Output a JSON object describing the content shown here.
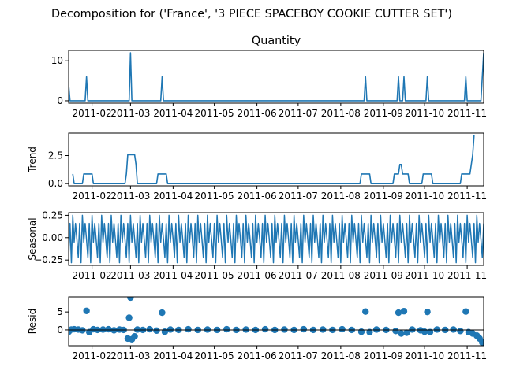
{
  "chart_data": {
    "type": "line",
    "title": "Decomposition for ('France', '3 PIECE SPACEBOY COOKIE CUTTER SET')",
    "x_start": "2011-01-15",
    "x_end": "2011-11-13",
    "x_tick_labels": [
      "2011-02",
      "2011-03",
      "2011-04",
      "2011-05",
      "2011-06",
      "2011-07",
      "2011-08",
      "2011-09",
      "2011-10",
      "2011-11"
    ],
    "x_tick_dates": [
      "2011-02-01",
      "2011-03-01",
      "2011-04-01",
      "2011-05-01",
      "2011-06-01",
      "2011-07-01",
      "2011-08-01",
      "2011-09-01",
      "2011-10-01",
      "2011-11-01"
    ],
    "line_color": "#1f77b4",
    "panels": [
      {
        "name": "observed",
        "title": "Quantity",
        "ylabel": "",
        "style": "line",
        "ylim": [
          -0.6,
          12.6
        ],
        "y_ticks": [
          0,
          10
        ],
        "points": [
          [
            "2011-01-15",
            4
          ],
          [
            "2011-01-16",
            0
          ],
          [
            "2011-01-27",
            0
          ],
          [
            "2011-01-28",
            6
          ],
          [
            "2011-01-29",
            0
          ],
          [
            "2011-02-28",
            0
          ],
          [
            "2011-03-01",
            12
          ],
          [
            "2011-03-02",
            0
          ],
          [
            "2011-03-23",
            0
          ],
          [
            "2011-03-24",
            6
          ],
          [
            "2011-03-25",
            0
          ],
          [
            "2011-08-18",
            0
          ],
          [
            "2011-08-19",
            6
          ],
          [
            "2011-08-20",
            0
          ],
          [
            "2011-09-11",
            0
          ],
          [
            "2011-09-12",
            6
          ],
          [
            "2011-09-13",
            0
          ],
          [
            "2011-09-15",
            0
          ],
          [
            "2011-09-16",
            6
          ],
          [
            "2011-09-17",
            0
          ],
          [
            "2011-10-02",
            0
          ],
          [
            "2011-10-03",
            6
          ],
          [
            "2011-10-04",
            0
          ],
          [
            "2011-10-30",
            0
          ],
          [
            "2011-10-31",
            6
          ],
          [
            "2011-11-01",
            0
          ],
          [
            "2011-11-11",
            0
          ],
          [
            "2011-11-13",
            12
          ]
        ]
      },
      {
        "name": "trend",
        "title": "",
        "ylabel": "Trend",
        "style": "line",
        "ylim": [
          -0.2,
          4.5
        ],
        "y_ticks": [
          0.0,
          2.5
        ],
        "points": [
          [
            "2011-01-18",
            0.86
          ],
          [
            "2011-01-19",
            0.0
          ],
          [
            "2011-01-25",
            0.0
          ],
          [
            "2011-01-26",
            0.86
          ],
          [
            "2011-02-01",
            0.86
          ],
          [
            "2011-02-02",
            0.0
          ],
          [
            "2011-02-25",
            0.0
          ],
          [
            "2011-02-26",
            0.86
          ],
          [
            "2011-02-27",
            2.57
          ],
          [
            "2011-03-04",
            2.57
          ],
          [
            "2011-03-05",
            1.71
          ],
          [
            "2011-03-06",
            0.0
          ],
          [
            "2011-03-20",
            0.0
          ],
          [
            "2011-03-21",
            0.86
          ],
          [
            "2011-03-27",
            0.86
          ],
          [
            "2011-03-28",
            0.0
          ],
          [
            "2011-08-15",
            0.0
          ],
          [
            "2011-08-16",
            0.86
          ],
          [
            "2011-08-22",
            0.86
          ],
          [
            "2011-08-23",
            0.0
          ],
          [
            "2011-09-08",
            0.0
          ],
          [
            "2011-09-09",
            0.86
          ],
          [
            "2011-09-12",
            0.86
          ],
          [
            "2011-09-13",
            1.71
          ],
          [
            "2011-09-14",
            1.71
          ],
          [
            "2011-09-15",
            0.86
          ],
          [
            "2011-09-19",
            0.86
          ],
          [
            "2011-09-20",
            0.0
          ],
          [
            "2011-09-29",
            0.0
          ],
          [
            "2011-09-30",
            0.86
          ],
          [
            "2011-10-06",
            0.86
          ],
          [
            "2011-10-07",
            0.0
          ],
          [
            "2011-10-27",
            0.0
          ],
          [
            "2011-10-28",
            0.86
          ],
          [
            "2011-11-03",
            0.86
          ],
          [
            "2011-11-04",
            1.71
          ],
          [
            "2011-11-05",
            2.57
          ],
          [
            "2011-11-06",
            4.29
          ]
        ]
      },
      {
        "name": "seasonal",
        "title": "",
        "ylabel": "Seasonal",
        "style": "seasonal",
        "ylim": [
          -0.31,
          0.28
        ],
        "y_ticks": [
          -0.25,
          0.0,
          0.25
        ],
        "weekly_pattern": [
          -0.22,
          0.16,
          -0.28,
          0.25,
          -0.05,
          0.16,
          -0.02
        ]
      },
      {
        "name": "resid",
        "title": "",
        "ylabel": "Resid",
        "style": "scatter",
        "ylim": [
          -4.4,
          9.2
        ],
        "y_ticks": [
          0,
          5
        ],
        "baseline": 0,
        "points": [
          [
            "2011-01-15",
            -0.5
          ],
          [
            "2011-01-17",
            0.1
          ],
          [
            "2011-01-19",
            0.2
          ],
          [
            "2011-01-22",
            0.1
          ],
          [
            "2011-01-25",
            -0.1
          ],
          [
            "2011-01-28",
            5.3
          ],
          [
            "2011-01-30",
            -0.6
          ],
          [
            "2011-02-02",
            0.2
          ],
          [
            "2011-02-05",
            0.0
          ],
          [
            "2011-02-09",
            0.1
          ],
          [
            "2011-02-13",
            0.2
          ],
          [
            "2011-02-17",
            -0.1
          ],
          [
            "2011-02-21",
            0.1
          ],
          [
            "2011-02-24",
            0.0
          ],
          [
            "2011-02-27",
            -2.4
          ],
          [
            "2011-02-28",
            3.4
          ],
          [
            "2011-03-01",
            9.0
          ],
          [
            "2011-03-02",
            -2.6
          ],
          [
            "2011-03-04",
            -1.8
          ],
          [
            "2011-03-06",
            0.1
          ],
          [
            "2011-03-10",
            0.0
          ],
          [
            "2011-03-15",
            0.2
          ],
          [
            "2011-03-20",
            -0.2
          ],
          [
            "2011-03-24",
            4.8
          ],
          [
            "2011-03-26",
            -0.5
          ],
          [
            "2011-03-30",
            0.1
          ],
          [
            "2011-04-05",
            0.0
          ],
          [
            "2011-04-12",
            0.2
          ],
          [
            "2011-04-19",
            0.0
          ],
          [
            "2011-04-26",
            0.1
          ],
          [
            "2011-05-03",
            0.0
          ],
          [
            "2011-05-10",
            0.2
          ],
          [
            "2011-05-17",
            0.0
          ],
          [
            "2011-05-24",
            0.1
          ],
          [
            "2011-05-31",
            0.0
          ],
          [
            "2011-06-07",
            0.2
          ],
          [
            "2011-06-14",
            0.0
          ],
          [
            "2011-06-21",
            0.1
          ],
          [
            "2011-06-28",
            0.0
          ],
          [
            "2011-07-05",
            0.2
          ],
          [
            "2011-07-12",
            0.0
          ],
          [
            "2011-07-19",
            0.1
          ],
          [
            "2011-07-26",
            0.0
          ],
          [
            "2011-08-02",
            0.2
          ],
          [
            "2011-08-09",
            0.0
          ],
          [
            "2011-08-16",
            -0.5
          ],
          [
            "2011-08-19",
            5.1
          ],
          [
            "2011-08-22",
            -0.6
          ],
          [
            "2011-08-27",
            0.1
          ],
          [
            "2011-09-03",
            0.0
          ],
          [
            "2011-09-10",
            -0.3
          ],
          [
            "2011-09-12",
            4.8
          ],
          [
            "2011-09-14",
            -1.0
          ],
          [
            "2011-09-16",
            5.2
          ],
          [
            "2011-09-18",
            -0.8
          ],
          [
            "2011-09-22",
            0.1
          ],
          [
            "2011-09-28",
            -0.1
          ],
          [
            "2011-10-01",
            -0.5
          ],
          [
            "2011-10-03",
            5.0
          ],
          [
            "2011-10-05",
            -0.6
          ],
          [
            "2011-10-10",
            0.1
          ],
          [
            "2011-10-16",
            0.0
          ],
          [
            "2011-10-22",
            0.1
          ],
          [
            "2011-10-27",
            -0.3
          ],
          [
            "2011-10-31",
            5.1
          ],
          [
            "2011-11-02",
            -0.6
          ],
          [
            "2011-11-05",
            -1.0
          ],
          [
            "2011-11-08",
            -1.6
          ],
          [
            "2011-11-10",
            -2.4
          ],
          [
            "2011-11-12",
            -3.5
          ],
          [
            "2011-11-13",
            -4.1
          ]
        ]
      }
    ]
  }
}
